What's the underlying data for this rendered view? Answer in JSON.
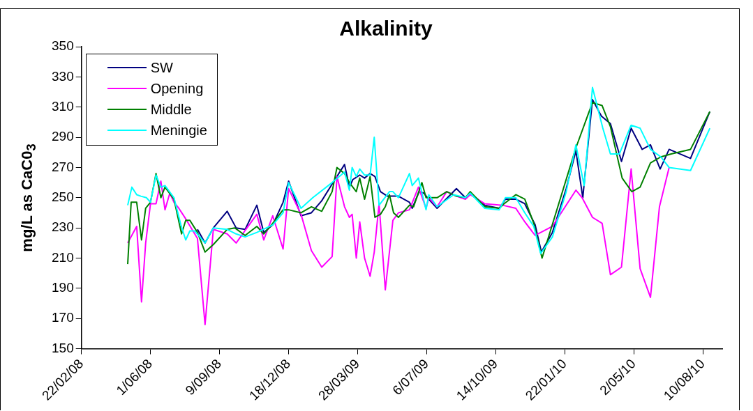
{
  "chart_data": {
    "type": "line",
    "title": "Alkalinity",
    "ylabel": "mg/L as CaC0$_{3}$",
    "xlim": [
      "2008-02-22",
      "2010-09-07"
    ],
    "xticks": [
      {
        "value": "2008-02-22",
        "label": "22/02/08"
      },
      {
        "value": "2008-06-01",
        "label": "1/06/08"
      },
      {
        "value": "2008-09-09",
        "label": "9/09/08"
      },
      {
        "value": "2008-12-18",
        "label": "18/12/08"
      },
      {
        "value": "2009-03-28",
        "label": "28/03/09"
      },
      {
        "value": "2009-07-06",
        "label": "6/07/09"
      },
      {
        "value": "2009-10-14",
        "label": "14/10/09"
      },
      {
        "value": "2010-01-22",
        "label": "22/01/10"
      },
      {
        "value": "2010-05-02",
        "label": "2/05/10"
      },
      {
        "value": "2010-08-10",
        "label": "10/08/10"
      }
    ],
    "ylim": [
      150,
      350
    ],
    "yticks": [
      150,
      170,
      190,
      210,
      230,
      250,
      270,
      290,
      310,
      330,
      350
    ],
    "grid": false,
    "legend": "top left",
    "marker": "none",
    "line_style": "solid",
    "series": [
      {
        "name": "SW",
        "color": "#000080",
        "x": [
          "2008-08-08",
          "2008-08-19",
          "2008-08-31",
          "2008-09-20",
          "2008-10-03",
          "2008-10-16",
          "2008-11-02",
          "2008-11-12",
          "2008-11-25",
          "2008-12-10",
          "2008-12-18",
          "2009-01-05",
          "2009-01-20",
          "2009-02-04",
          "2009-02-19",
          "2009-03-09",
          "2009-03-16",
          "2009-03-21",
          "2009-03-31",
          "2009-04-07",
          "2009-04-15",
          "2009-04-22",
          "2009-04-30",
          "2009-05-10",
          "2009-05-26",
          "2009-06-11",
          "2009-06-15",
          "2009-06-25",
          "2009-07-02",
          "2009-07-07",
          "2009-07-21",
          "2009-08-18",
          "2009-08-31",
          "2009-09-07",
          "2009-09-28",
          "2009-10-19",
          "2009-10-28",
          "2009-11-12",
          "2009-11-25",
          "2009-12-10",
          "2009-12-19",
          "2010-01-04",
          "2010-01-24",
          "2010-02-07",
          "2010-02-17",
          "2010-03-03",
          "2010-03-16",
          "2010-03-29",
          "2010-04-14",
          "2010-04-28",
          "2010-05-14",
          "2010-05-26",
          "2010-06-09",
          "2010-06-22",
          "2010-07-23",
          "2010-08-20"
        ],
        "values": [
          229,
          220,
          230,
          241,
          230,
          229,
          245,
          227,
          232,
          247,
          261,
          238,
          240,
          248,
          259,
          272,
          257,
          262,
          265,
          263,
          266,
          264,
          254,
          251,
          251,
          247,
          243,
          254,
          253,
          250,
          243,
          256,
          250,
          253,
          245,
          243,
          249,
          249,
          246,
          232,
          214,
          227,
          256,
          281,
          250,
          315,
          304,
          299,
          274,
          296,
          282,
          285,
          269,
          282,
          276,
          307
        ]
      },
      {
        "name": "Opening",
        "color": "#ff00ff",
        "x": [
          "2008-04-29",
          "2008-05-12",
          "2008-05-19",
          "2008-05-25",
          "2008-06-01",
          "2008-06-09",
          "2008-06-16",
          "2008-06-22",
          "2008-06-29",
          "2008-07-05",
          "2008-07-12",
          "2008-07-22",
          "2008-08-08",
          "2008-08-19",
          "2008-08-31",
          "2008-09-20",
          "2008-10-03",
          "2008-10-14",
          "2008-11-02",
          "2008-11-12",
          "2008-11-25",
          "2008-12-10",
          "2008-12-18",
          "2009-01-05",
          "2009-01-20",
          "2009-02-04",
          "2009-02-19",
          "2009-02-26",
          "2009-03-09",
          "2009-03-16",
          "2009-03-20",
          "2009-03-26",
          "2009-03-31",
          "2009-04-07",
          "2009-04-15",
          "2009-04-21",
          "2009-04-28",
          "2009-05-07",
          "2009-05-18",
          "2009-05-26",
          "2009-06-11",
          "2009-06-24",
          "2009-07-05",
          "2009-07-09",
          "2009-07-21",
          "2009-08-04",
          "2009-08-18",
          "2009-08-31",
          "2009-09-07",
          "2009-09-28",
          "2009-10-24",
          "2009-11-12",
          "2009-11-25",
          "2009-12-10",
          "2010-01-04",
          "2010-02-07",
          "2010-02-16",
          "2010-03-03",
          "2010-03-17",
          "2010-03-29",
          "2010-04-14",
          "2010-04-28",
          "2010-05-11",
          "2010-05-26",
          "2010-06-08",
          "2010-06-22"
        ],
        "values": [
          220,
          231,
          181,
          220,
          246,
          246,
          261,
          242,
          253,
          247,
          243,
          236,
          223,
          166,
          229,
          226,
          220,
          227,
          239,
          222,
          238,
          216,
          256,
          239,
          215,
          204,
          211,
          264,
          244,
          237,
          239,
          210,
          234,
          210,
          198,
          214,
          246,
          189,
          235,
          240,
          242,
          257,
          243,
          250,
          244,
          254,
          251,
          249,
          252,
          246,
          245,
          243,
          234,
          225,
          231,
          255,
          250,
          237,
          233,
          199,
          204,
          269,
          203,
          184,
          244,
          270
        ]
      },
      {
        "name": "Middle",
        "color": "#008000",
        "x": [
          "2008-04-29",
          "2008-05-04",
          "2008-05-12",
          "2008-05-19",
          "2008-05-25",
          "2008-06-01",
          "2008-06-09",
          "2008-06-16",
          "2008-06-22",
          "2008-07-05",
          "2008-07-16",
          "2008-07-22",
          "2008-07-28",
          "2008-08-08",
          "2008-08-19",
          "2008-08-31",
          "2008-09-20",
          "2008-10-01",
          "2008-10-16",
          "2008-11-02",
          "2008-11-12",
          "2008-11-25",
          "2008-12-10",
          "2008-12-18",
          "2009-01-05",
          "2009-01-20",
          "2009-02-04",
          "2009-02-19",
          "2009-02-26",
          "2009-03-09",
          "2009-03-16",
          "2009-03-26",
          "2009-03-31",
          "2009-04-07",
          "2009-04-15",
          "2009-04-22",
          "2009-04-30",
          "2009-05-07",
          "2009-05-13",
          "2009-05-19",
          "2009-05-26",
          "2009-06-11",
          "2009-06-17",
          "2009-06-29",
          "2009-07-05",
          "2009-07-21",
          "2009-08-04",
          "2009-08-18",
          "2009-08-31",
          "2009-09-07",
          "2009-09-28",
          "2009-10-19",
          "2009-10-26",
          "2009-11-12",
          "2009-11-25",
          "2009-12-08",
          "2009-12-20",
          "2010-02-07",
          "2010-03-03",
          "2010-03-17",
          "2010-03-29",
          "2010-04-15",
          "2010-04-29",
          "2010-05-11",
          "2010-05-26",
          "2010-06-10",
          "2010-06-25",
          "2010-07-23",
          "2010-08-20"
        ],
        "values": [
          206,
          247,
          247,
          222,
          243,
          247,
          266,
          250,
          257,
          249,
          226,
          235,
          235,
          227,
          214,
          219,
          229,
          230,
          225,
          231,
          226,
          233,
          242,
          242,
          240,
          244,
          241,
          254,
          270,
          266,
          260,
          254,
          263,
          249,
          264,
          237,
          239,
          244,
          252,
          240,
          237,
          245,
          244,
          260,
          250,
          250,
          254,
          251,
          250,
          254,
          244,
          243,
          246,
          252,
          249,
          233,
          210,
          283,
          313,
          311,
          297,
          263,
          254,
          257,
          273,
          277,
          279,
          282,
          307
        ]
      },
      {
        "name": "Meningie",
        "color": "#00ffff",
        "x": [
          "2008-04-29",
          "2008-05-05",
          "2008-05-12",
          "2008-05-18",
          "2008-05-26",
          "2008-06-01",
          "2008-06-09",
          "2008-06-16",
          "2008-06-22",
          "2008-07-05",
          "2008-07-15",
          "2008-07-22",
          "2008-07-28",
          "2008-08-04",
          "2008-08-19",
          "2008-08-31",
          "2008-09-20",
          "2008-10-03",
          "2008-10-16",
          "2008-11-02",
          "2008-11-25",
          "2008-12-10",
          "2008-12-18",
          "2009-01-05",
          "2009-01-22",
          "2009-02-19",
          "2009-03-09",
          "2009-03-16",
          "2009-03-20",
          "2009-03-26",
          "2009-03-31",
          "2009-04-07",
          "2009-04-15",
          "2009-04-21",
          "2009-04-28",
          "2009-05-13",
          "2009-05-18",
          "2009-05-26",
          "2009-06-11",
          "2009-06-15",
          "2009-06-24",
          "2009-07-05",
          "2009-07-09",
          "2009-07-21",
          "2009-08-14",
          "2009-08-31",
          "2009-09-07",
          "2009-09-28",
          "2009-10-19",
          "2009-10-28",
          "2009-11-12",
          "2009-11-25",
          "2009-12-08",
          "2009-12-18",
          "2010-01-04",
          "2010-01-24",
          "2010-02-07",
          "2010-02-19",
          "2010-03-03",
          "2010-03-18",
          "2010-03-29",
          "2010-04-11",
          "2010-04-28",
          "2010-05-11",
          "2010-05-26",
          "2010-06-10",
          "2010-06-22",
          "2010-07-23",
          "2010-08-20"
        ],
        "values": [
          245,
          257,
          252,
          251,
          250,
          247,
          265,
          257,
          258,
          250,
          232,
          222,
          228,
          228,
          220,
          230,
          229,
          226,
          224,
          227,
          232,
          240,
          260,
          243,
          250,
          260,
          267,
          255,
          270,
          264,
          269,
          265,
          265,
          290,
          245,
          254,
          254,
          250,
          266,
          258,
          263,
          242,
          252,
          244,
          252,
          250,
          253,
          243,
          242,
          250,
          250,
          240,
          231,
          213,
          224,
          254,
          285,
          258,
          323,
          296,
          279,
          279,
          298,
          296,
          282,
          277,
          270,
          268,
          296
        ]
      }
    ]
  }
}
